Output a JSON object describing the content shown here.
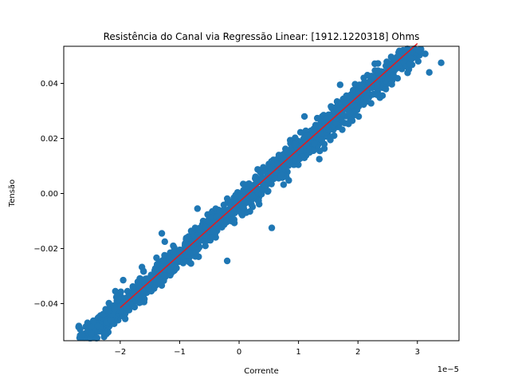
{
  "chart_data": {
    "type": "scatter",
    "title": "Resistência do Canal via Regressão Linear: [1912.1220318] Ohms",
    "xlabel": "Corrente",
    "ylabel": "Tensão",
    "x_offset_label": "1e−5",
    "xlim": [
      -2.95e-05,
      3.7e-05
    ],
    "ylim": [
      -0.0535,
      0.0535
    ],
    "x_ticks": [
      -2e-05,
      -1e-05,
      0,
      1e-05,
      2e-05,
      3e-05
    ],
    "x_tick_labels": [
      "−2",
      "−1",
      "0",
      "1",
      "2",
      "3"
    ],
    "y_ticks": [
      -0.04,
      -0.02,
      0.0,
      0.02,
      0.04
    ],
    "y_tick_labels": [
      "−0.04",
      "−0.02",
      "0.00",
      "0.02",
      "0.04"
    ],
    "grid": false,
    "series": [
      {
        "type": "scatter",
        "color": "#1f77b4",
        "point_count": 1500,
        "x_range": [
          -2.7e-05,
          3.4e-05
        ],
        "slope": 1912.1220318,
        "intercept": -0.0037,
        "noise_std": 0.0026,
        "points": [
          [
            -2.7e-05,
            -0.0485
          ],
          [
            -2.55e-05,
            -0.047
          ],
          [
            -2.45e-05,
            -0.0465
          ],
          [
            -1.95e-05,
            -0.0315
          ],
          [
            -1.25e-05,
            -0.03
          ],
          [
            -1.3e-05,
            -0.0145
          ],
          [
            -1.25e-05,
            -0.0175
          ],
          [
            -1e-05,
            -0.0205
          ],
          [
            -7e-06,
            -0.0055
          ],
          [
            -2e-06,
            -0.0245
          ],
          [
            5.5e-06,
            -0.0125
          ],
          [
            7.5e-06,
            0.012
          ],
          [
            1.1e-05,
            0.028
          ],
          [
            1.15e-05,
            0.021
          ],
          [
            1.35e-05,
            0.0125
          ],
          [
            1.7e-05,
            0.0395
          ],
          [
            2.6e-05,
            0.049
          ],
          [
            3.2e-05,
            0.044
          ],
          [
            3.4e-05,
            0.0475
          ]
        ]
      },
      {
        "type": "line",
        "color": "#e41a1c",
        "x": [
          -2e-05,
          3e-05
        ],
        "y": [
          -0.0415,
          0.0545
        ]
      }
    ]
  }
}
